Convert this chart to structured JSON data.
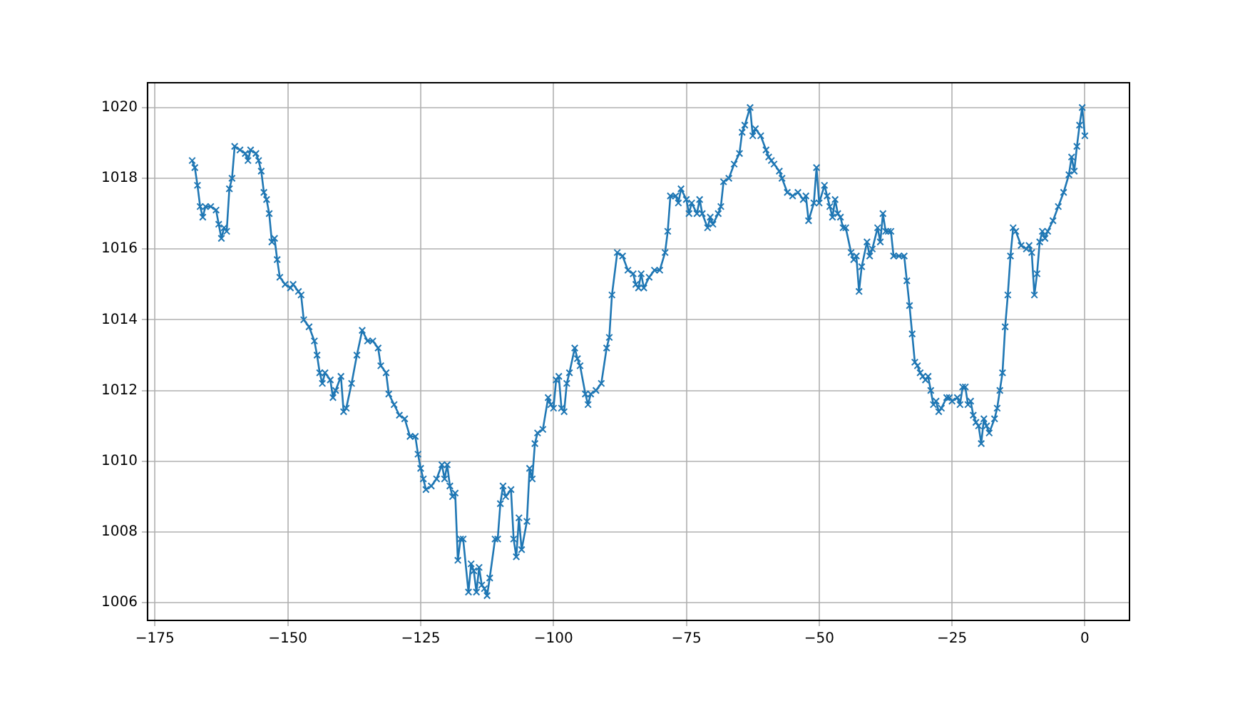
{
  "chart_data": {
    "type": "line",
    "x": [
      -168,
      -167.5,
      -167,
      -166.5,
      -166,
      -165.5,
      -164.5,
      -163.5,
      -163,
      -162.5,
      -162,
      -161.5,
      -161,
      -160.5,
      -160,
      -159,
      -158,
      -157.5,
      -157,
      -156,
      -155.5,
      -155,
      -154.5,
      -154,
      -153.5,
      -153,
      -152.5,
      -152,
      -151.5,
      -150.5,
      -149.5,
      -149,
      -148,
      -147.5,
      -147,
      -146,
      -145,
      -144.5,
      -144,
      -143.5,
      -143,
      -142,
      -141.5,
      -141,
      -140,
      -139.5,
      -139,
      -138,
      -137,
      -136,
      -135,
      -134,
      -133,
      -132.5,
      -131.5,
      -131,
      -130,
      -129,
      -128,
      -127,
      -126,
      -125.5,
      -125,
      -124.5,
      -124,
      -123,
      -122,
      -121,
      -120.5,
      -120,
      -119.5,
      -119,
      -118.5,
      -118,
      -117.5,
      -117,
      -116,
      -115.5,
      -115,
      -114.5,
      -114,
      -113.5,
      -113,
      -112.5,
      -112,
      -111,
      -110.5,
      -110,
      -109.5,
      -109,
      -108,
      -107.5,
      -107,
      -106.5,
      -106,
      -105,
      -104.5,
      -104,
      -103.5,
      -103,
      -102,
      -101,
      -100.5,
      -100,
      -99.5,
      -99,
      -98.5,
      -98,
      -97.5,
      -97,
      -96,
      -95.5,
      -95,
      -94,
      -93.5,
      -93,
      -92,
      -91,
      -90,
      -89.5,
      -89,
      -88,
      -87,
      -86,
      -85,
      -84.5,
      -84,
      -83.5,
      -83,
      -82,
      -81,
      -80,
      -79,
      -78.5,
      -78,
      -77,
      -76.5,
      -76,
      -75,
      -74.5,
      -74,
      -73,
      -72.5,
      -72,
      -71,
      -70.5,
      -70,
      -69,
      -68.5,
      -68,
      -67,
      -66,
      -65,
      -64.5,
      -64,
      -63,
      -62.5,
      -62,
      -61,
      -60,
      -59.5,
      -59,
      -58.5,
      -57.5,
      -57,
      -56,
      -55,
      -54,
      -53,
      -52.5,
      -52,
      -51,
      -50.5,
      -50,
      -49,
      -48.5,
      -48,
      -47.5,
      -47,
      -46.5,
      -46,
      -45.5,
      -45,
      -44,
      -43.5,
      -43,
      -42.5,
      -42,
      -41,
      -40.5,
      -40,
      -39,
      -38.5,
      -38,
      -37.5,
      -37,
      -36.5,
      -36,
      -35,
      -34,
      -33.5,
      -33,
      -32.5,
      -32,
      -31.5,
      -31,
      -30.5,
      -30,
      -29.5,
      -29,
      -28.5,
      -28,
      -27.5,
      -27,
      -26,
      -25.5,
      -25,
      -24,
      -23.5,
      -23,
      -22.5,
      -22,
      -21.5,
      -21,
      -20.5,
      -20,
      -19.5,
      -19,
      -18.5,
      -18,
      -17,
      -16.5,
      -16,
      -15.5,
      -15,
      -14.5,
      -14,
      -13.5,
      -13,
      -12,
      -11,
      -10.5,
      -10,
      -9.5,
      -9,
      -8.5,
      -8,
      -7.5,
      -7,
      -6,
      -5,
      -4,
      -3,
      -2.5,
      -2,
      -1.5,
      -1,
      -0.5,
      0
    ],
    "series": [
      {
        "color": "#1f77b4",
        "values": [
          1018.5,
          1018.3,
          1017.8,
          1017.2,
          1016.9,
          1017.2,
          1017.2,
          1017.1,
          1016.7,
          1016.3,
          1016.6,
          1016.5,
          1017.7,
          1018.0,
          1018.9,
          1018.8,
          1018.7,
          1018.5,
          1018.8,
          1018.7,
          1018.5,
          1018.2,
          1017.6,
          1017.4,
          1017.0,
          1016.2,
          1016.3,
          1015.7,
          1015.2,
          1015.0,
          1014.9,
          1015.0,
          1014.8,
          1014.7,
          1014.0,
          1013.8,
          1013.4,
          1013.0,
          1012.5,
          1012.2,
          1012.5,
          1012.3,
          1011.8,
          1012.0,
          1012.4,
          1011.4,
          1011.5,
          1012.2,
          1013.0,
          1013.7,
          1013.4,
          1013.4,
          1013.2,
          1012.7,
          1012.5,
          1011.9,
          1011.6,
          1011.3,
          1011.2,
          1010.7,
          1010.7,
          1010.2,
          1009.8,
          1009.5,
          1009.2,
          1009.3,
          1009.5,
          1009.9,
          1009.5,
          1009.9,
          1009.3,
          1009.0,
          1009.1,
          1007.2,
          1007.8,
          1007.8,
          1006.3,
          1007.1,
          1006.9,
          1006.3,
          1007.0,
          1006.5,
          1006.4,
          1006.2,
          1006.7,
          1007.8,
          1007.8,
          1008.8,
          1009.3,
          1009.0,
          1009.2,
          1007.8,
          1007.3,
          1008.4,
          1007.5,
          1008.3,
          1009.8,
          1009.5,
          1010.5,
          1010.8,
          1010.9,
          1011.8,
          1011.6,
          1011.5,
          1012.3,
          1012.4,
          1011.5,
          1011.4,
          1012.2,
          1012.5,
          1013.2,
          1012.9,
          1012.7,
          1011.9,
          1011.6,
          1011.9,
          1012.0,
          1012.2,
          1013.2,
          1013.5,
          1014.7,
          1015.9,
          1015.8,
          1015.4,
          1015.3,
          1015.0,
          1014.9,
          1015.3,
          1014.9,
          1015.2,
          1015.4,
          1015.4,
          1015.9,
          1016.5,
          1017.5,
          1017.5,
          1017.3,
          1017.7,
          1017.4,
          1017.0,
          1017.3,
          1017.0,
          1017.4,
          1017.0,
          1016.6,
          1016.9,
          1016.7,
          1017.0,
          1017.2,
          1017.9,
          1018.0,
          1018.4,
          1018.7,
          1019.3,
          1019.5,
          1020.0,
          1019.2,
          1019.4,
          1019.2,
          1018.8,
          1018.6,
          1018.5,
          1018.4,
          1018.2,
          1018.0,
          1017.6,
          1017.5,
          1017.6,
          1017.4,
          1017.5,
          1016.8,
          1017.3,
          1018.3,
          1017.3,
          1017.8,
          1017.5,
          1017.2,
          1016.9,
          1017.4,
          1017.0,
          1016.9,
          1016.6,
          1016.6,
          1015.9,
          1015.7,
          1015.8,
          1014.8,
          1015.5,
          1016.2,
          1015.8,
          1016.0,
          1016.6,
          1016.2,
          1017.0,
          1016.5,
          1016.5,
          1016.5,
          1015.8,
          1015.8,
          1015.8,
          1015.1,
          1014.4,
          1013.6,
          1012.8,
          1012.7,
          1012.5,
          1012.4,
          1012.3,
          1012.4,
          1012.0,
          1011.6,
          1011.7,
          1011.4,
          1011.5,
          1011.8,
          1011.8,
          1011.7,
          1011.8,
          1011.6,
          1012.1,
          1012.1,
          1011.6,
          1011.7,
          1011.3,
          1011.1,
          1011.0,
          1010.5,
          1011.2,
          1011.0,
          1010.8,
          1011.2,
          1011.5,
          1012.0,
          1012.5,
          1013.8,
          1014.7,
          1015.8,
          1016.6,
          1016.5,
          1016.1,
          1016.0,
          1016.1,
          1015.9,
          1014.7,
          1015.3,
          1016.2,
          1016.5,
          1016.3,
          1016.5,
          1016.8,
          1017.2,
          1017.6,
          1018.1,
          1018.6,
          1018.2,
          1018.9,
          1019.5,
          1020.0,
          1019.2
        ]
      }
    ],
    "xlim": [
      -176.4,
      8.4
    ],
    "ylim": [
      1005.5,
      1020.7
    ],
    "xticks": [
      -175,
      -150,
      -125,
      -100,
      -75,
      -50,
      -25,
      0
    ],
    "yticks": [
      1006,
      1008,
      1010,
      1012,
      1014,
      1016,
      1018,
      1020
    ],
    "grid": true,
    "legend": false,
    "marker": "cross",
    "line_style": "solid"
  }
}
